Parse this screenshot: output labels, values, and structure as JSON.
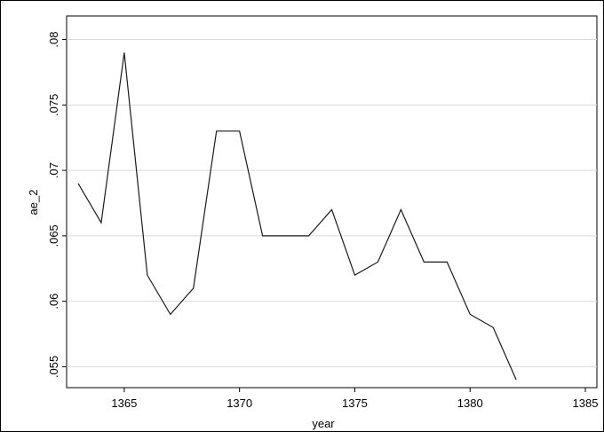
{
  "chart_data": {
    "type": "line",
    "xlabel": "year",
    "ylabel": "ae_2",
    "x": [
      1363,
      1364,
      1365,
      1366,
      1367,
      1368,
      1369,
      1370,
      1371,
      1372,
      1373,
      1374,
      1375,
      1376,
      1377,
      1378,
      1379,
      1380,
      1381,
      1382
    ],
    "values": [
      0.069,
      0.066,
      0.079,
      0.062,
      0.059,
      0.061,
      0.073,
      0.073,
      0.065,
      0.065,
      0.065,
      0.067,
      0.062,
      0.063,
      0.067,
      0.063,
      0.063,
      0.059,
      0.058,
      0.054
    ],
    "color": "#1a1a1a",
    "xlim": [
      1362.5,
      1385.5
    ],
    "xticks": [
      1365,
      1370,
      1375,
      1380,
      1385
    ],
    "ylim": [
      0.0534,
      0.0818
    ],
    "yticks": [
      {
        "value": 0.055,
        "label": ".055"
      },
      {
        "value": 0.06,
        "label": ".06"
      },
      {
        "value": 0.065,
        "label": ".065"
      },
      {
        "value": 0.07,
        "label": ".07"
      },
      {
        "value": 0.075,
        "label": ".075"
      },
      {
        "value": 0.08,
        "label": ".08"
      }
    ],
    "grid": true
  }
}
